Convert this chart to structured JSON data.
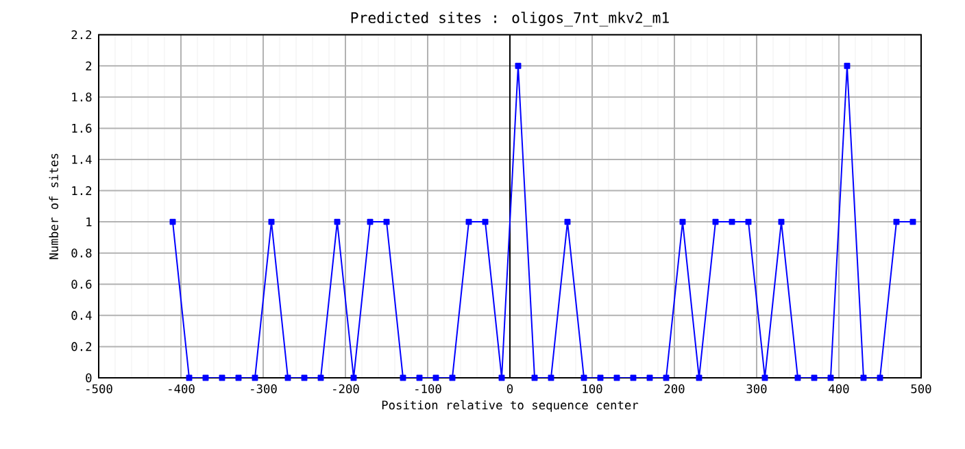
{
  "chart_data": {
    "type": "line",
    "title": "Predicted sites : oligos_7nt_mkv2_m1",
    "xlabel": "Position relative to sequence center",
    "ylabel": "Number of sites",
    "x": [
      -410,
      -390,
      -370,
      -350,
      -330,
      -310,
      -290,
      -270,
      -250,
      -230,
      -210,
      -190,
      -170,
      -150,
      -130,
      -110,
      -90,
      -70,
      -50,
      -30,
      -10,
      10,
      30,
      50,
      70,
      90,
      110,
      130,
      150,
      170,
      190,
      210,
      230,
      250,
      270,
      290,
      310,
      330,
      350,
      370,
      390,
      410,
      430,
      450,
      470,
      490
    ],
    "series": [
      {
        "color": "#0000ff",
        "values": [
          1,
          0,
          0,
          0,
          0,
          0,
          1,
          0,
          0,
          0,
          1,
          0,
          1,
          1,
          0,
          0,
          0,
          0,
          1,
          1,
          0,
          2,
          0,
          0,
          1,
          0,
          0,
          0,
          0,
          0,
          0,
          1,
          0,
          1,
          1,
          1,
          0,
          1,
          0,
          0,
          0,
          2,
          0,
          0,
          1,
          1
        ]
      }
    ],
    "xlim": [
      -500,
      500
    ],
    "xticks": [
      -500,
      -400,
      -300,
      -200,
      -100,
      0,
      100,
      200,
      300,
      400,
      500
    ],
    "ylim": [
      0,
      2.2
    ],
    "yticks": [
      0,
      0.2,
      0.4,
      0.6,
      0.8,
      1,
      1.2,
      1.4,
      1.6,
      1.8,
      2,
      2.2
    ],
    "ref_lines": [
      {
        "axis": "x",
        "value": 0,
        "color": "#000000"
      }
    ],
    "grid": true,
    "marker": "square",
    "line_style": "solid"
  }
}
